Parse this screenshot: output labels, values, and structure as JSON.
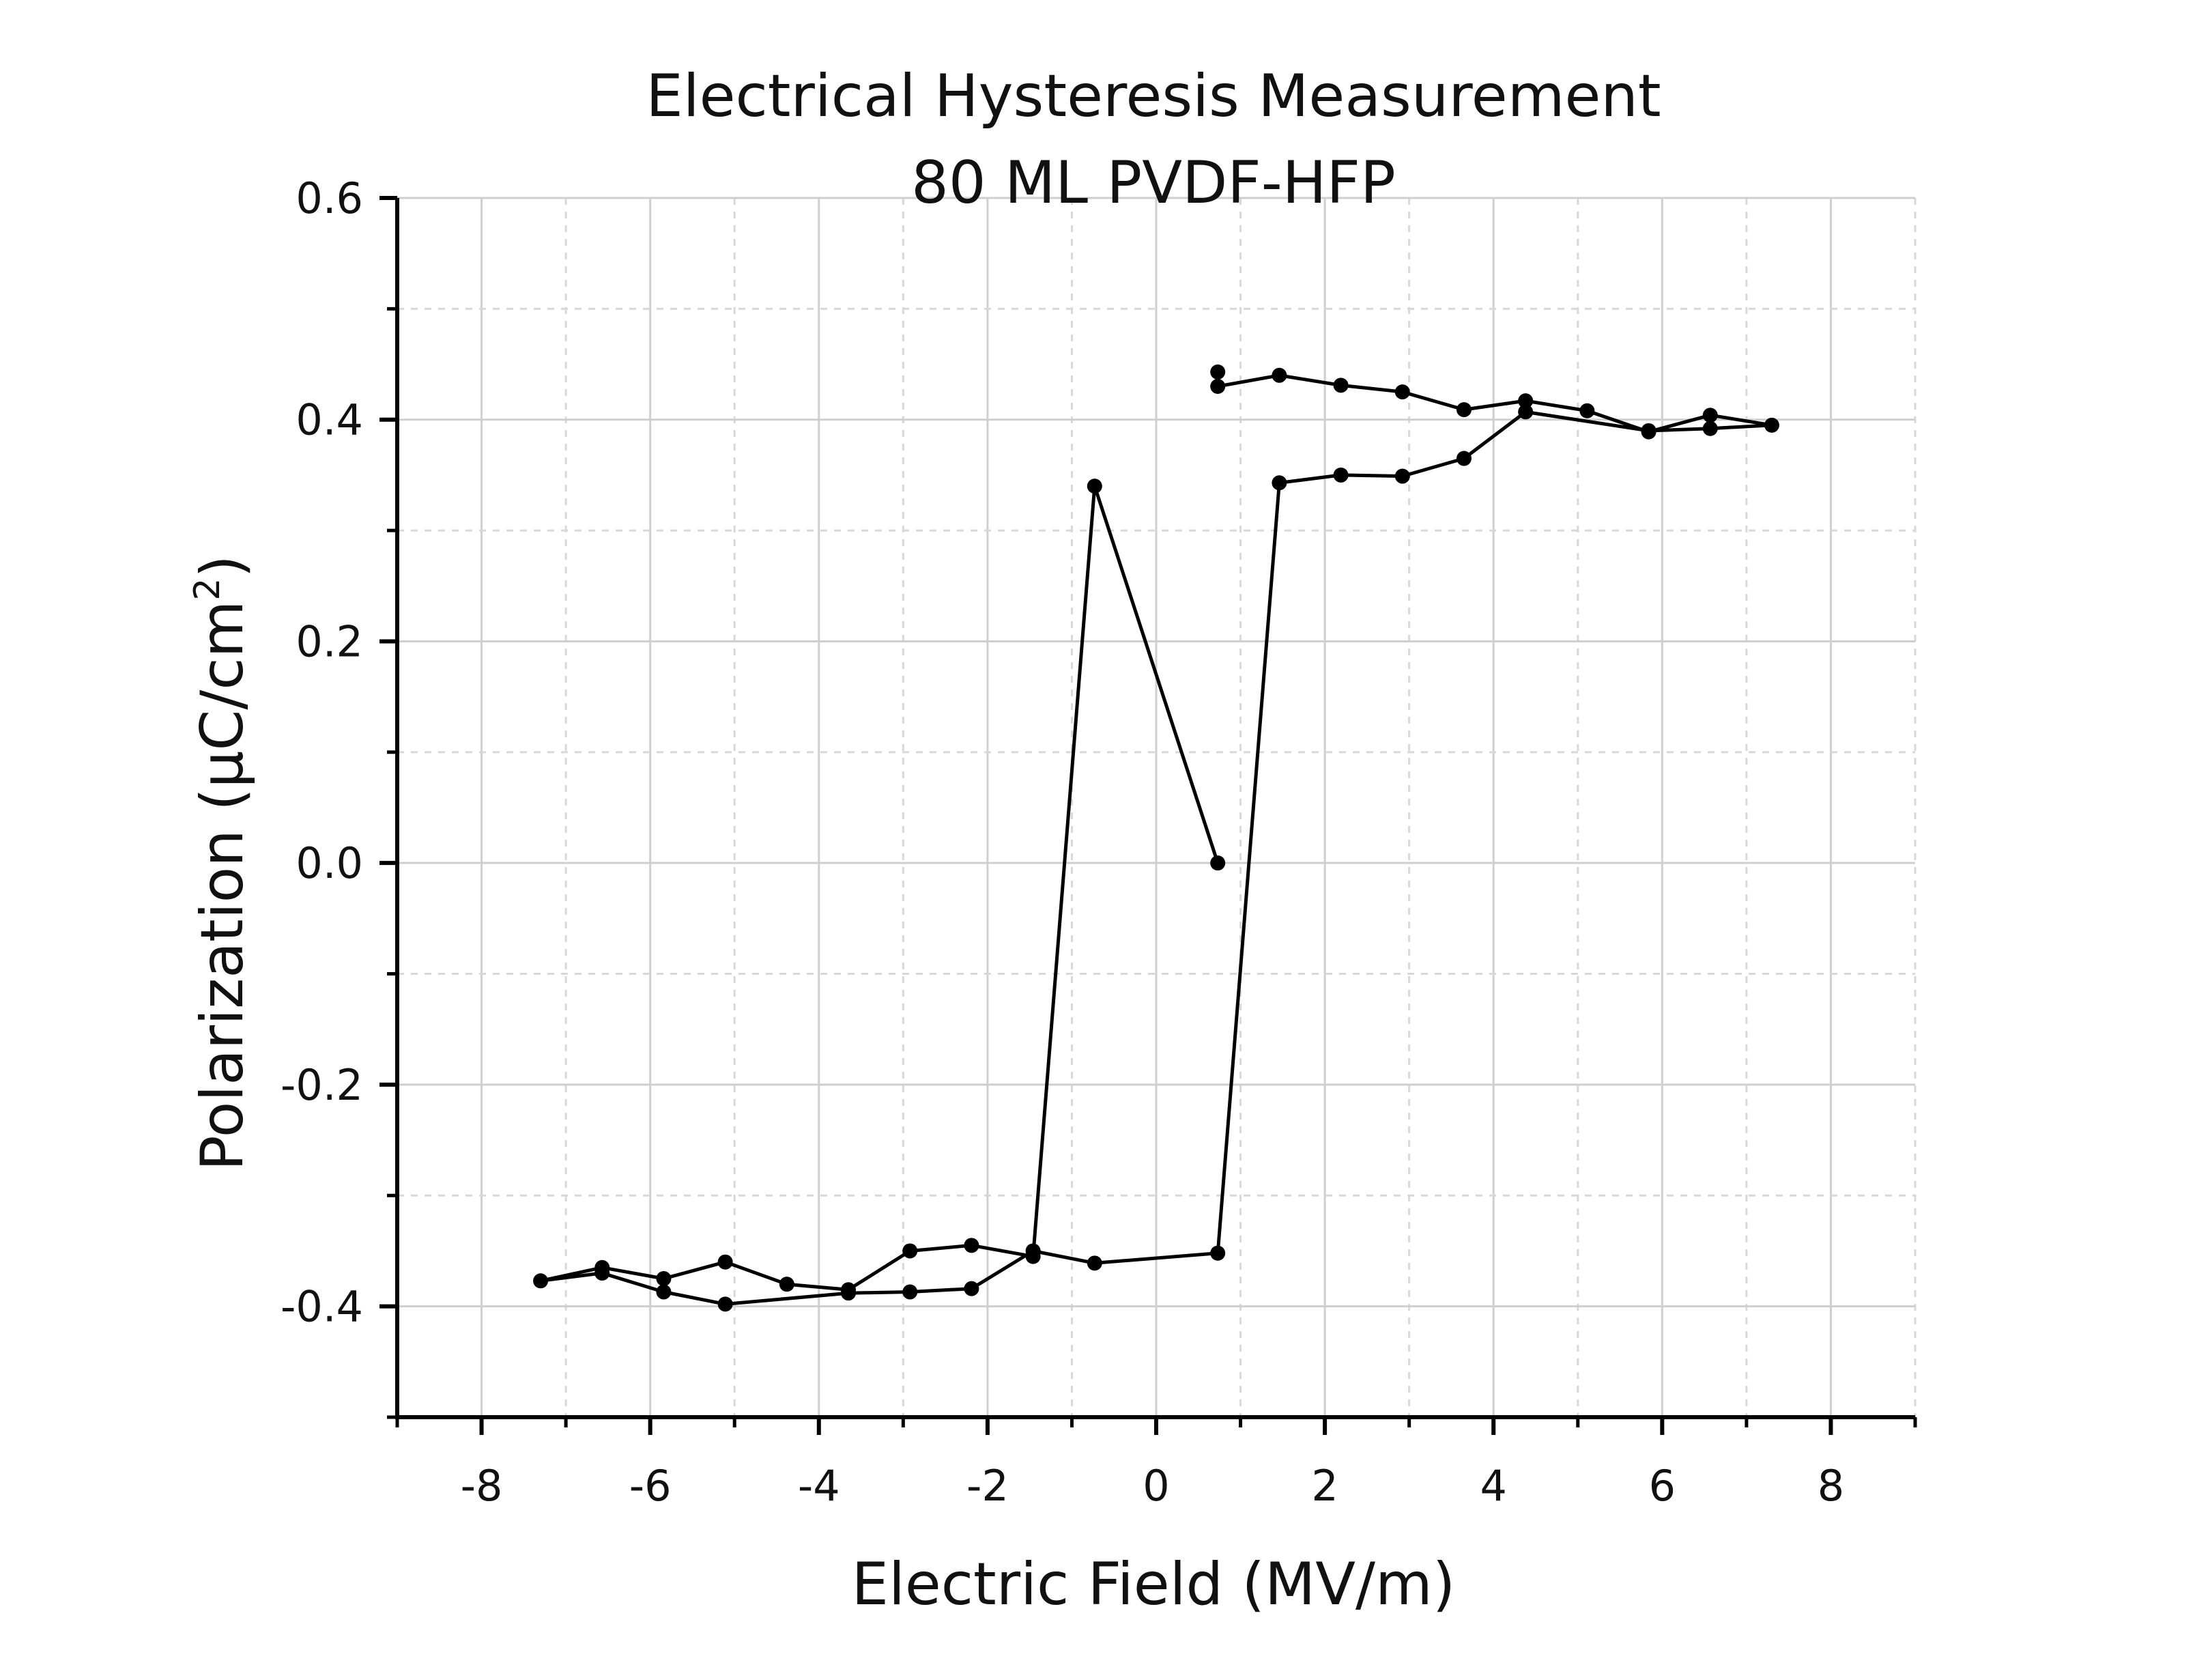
{
  "chart_data": {
    "type": "line",
    "title": "Electrical Hysteresis Measurement",
    "subtitle": "80 ML PVDF-HFP",
    "xlabel": "Electric Field (MV/m)",
    "ylabel_main": "Polarization (μC/cm",
    "ylabel_sup": "2",
    "ylabel_close": ")",
    "xlim": [
      -9,
      9
    ],
    "ylim": [
      -0.5,
      0.6
    ],
    "xticks": [
      -8,
      -6,
      -4,
      -2,
      0,
      2,
      4,
      6,
      8
    ],
    "yticks": [
      -0.4,
      -0.2,
      0.0,
      0.2,
      0.4,
      0.6
    ],
    "xtick_labels": [
      "-8",
      "-6",
      "-4",
      "-2",
      "0",
      "2",
      "4",
      "6",
      "8"
    ],
    "ytick_labels": [
      "-0.4",
      "-0.2",
      "0.0",
      "0.2",
      "0.4",
      "0.6"
    ],
    "grid": true,
    "legend": "none",
    "color": "#000000",
    "series": [
      {
        "x": [
          0.73,
          -0.73,
          -1.46,
          -2.19,
          -2.92,
          -3.65,
          -4.38,
          -5.11,
          -5.84,
          -6.57,
          -7.3,
          -6.57,
          -5.84,
          -5.11,
          -3.65,
          -2.92,
          -2.19,
          -1.46,
          -0.73,
          0.73,
          1.46,
          2.19,
          2.92,
          3.65,
          4.38,
          5.84,
          6.57,
          7.3,
          6.57,
          5.84,
          5.11,
          4.38,
          3.65,
          2.92,
          2.19,
          1.46,
          0.73,
          0.73
        ],
        "y": [
          0.0,
          0.34,
          -0.355,
          -0.345,
          -0.35,
          -0.385,
          -0.38,
          -0.36,
          -0.375,
          -0.365,
          -0.377,
          -0.37,
          -0.387,
          -0.398,
          -0.388,
          -0.387,
          -0.384,
          -0.35,
          -0.361,
          -0.352,
          0.343,
          0.35,
          0.349,
          0.365,
          0.407,
          0.39,
          0.392,
          0.395,
          0.404,
          0.389,
          0.408,
          0.417,
          0.409,
          0.425,
          0.431,
          0.44,
          0.43,
          0.443
        ]
      }
    ]
  }
}
